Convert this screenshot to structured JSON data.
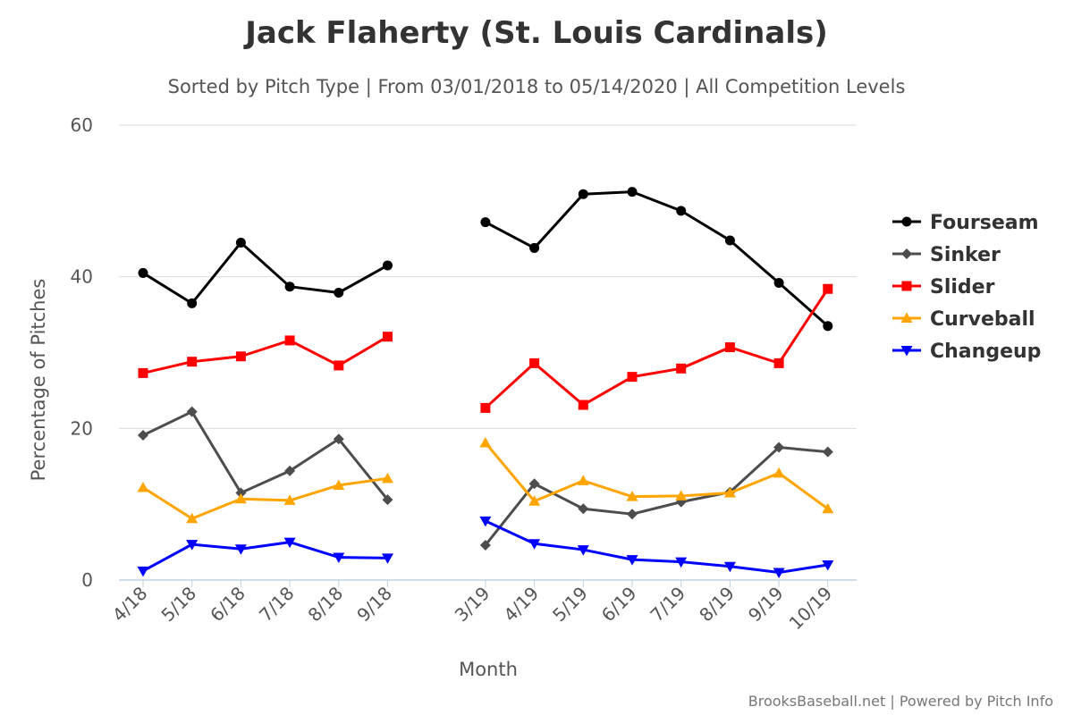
{
  "chart_data": {
    "type": "line",
    "title": "Jack Flaherty (St. Louis Cardinals)",
    "subtitle": "Sorted by Pitch Type | From 03/01/2018 to 05/14/2020 | All Competition Levels",
    "xlabel": "Month",
    "ylabel": "Percentage of Pitches",
    "ylim": [
      0,
      60
    ],
    "yticks": [
      0,
      20,
      40,
      60
    ],
    "categories": [
      "4/18",
      "5/18",
      "6/18",
      "7/18",
      "8/18",
      "9/18",
      "",
      "3/19",
      "4/19",
      "5/19",
      "6/19",
      "7/19",
      "8/19",
      "9/19",
      "10/19"
    ],
    "grid": true,
    "legend_position": "right",
    "series": [
      {
        "name": "Fourseam",
        "color": "#000000",
        "marker": "circle",
        "values": [
          40.5,
          36.5,
          44.5,
          38.7,
          37.9,
          41.5,
          null,
          47.2,
          43.8,
          50.9,
          51.2,
          48.7,
          44.8,
          39.2,
          33.5
        ]
      },
      {
        "name": "Sinker",
        "color": "#4d4d4d",
        "marker": "diamond",
        "values": [
          19.1,
          22.2,
          11.5,
          14.4,
          18.6,
          10.6,
          null,
          4.6,
          12.7,
          9.4,
          8.7,
          10.3,
          11.6,
          17.5,
          16.9
        ]
      },
      {
        "name": "Slider",
        "color": "#ff0000",
        "marker": "square",
        "values": [
          27.3,
          28.8,
          29.5,
          31.6,
          28.3,
          32.1,
          null,
          22.7,
          28.6,
          23.1,
          26.8,
          27.9,
          30.7,
          28.6,
          38.4
        ]
      },
      {
        "name": "Curveball",
        "color": "#ffa500",
        "marker": "triangle",
        "values": [
          12.2,
          8.1,
          10.7,
          10.5,
          12.5,
          13.4,
          null,
          18.1,
          10.4,
          13.1,
          11.0,
          11.1,
          11.5,
          14.1,
          9.4
        ]
      },
      {
        "name": "Changeup",
        "color": "#0000ff",
        "marker": "triangle-down",
        "values": [
          1.2,
          4.7,
          4.1,
          5.0,
          3.0,
          2.9,
          null,
          7.8,
          4.8,
          4.0,
          2.7,
          2.4,
          1.8,
          1.0,
          2.0
        ]
      }
    ]
  },
  "credits": "BrooksBaseball.net | Powered by Pitch Info"
}
